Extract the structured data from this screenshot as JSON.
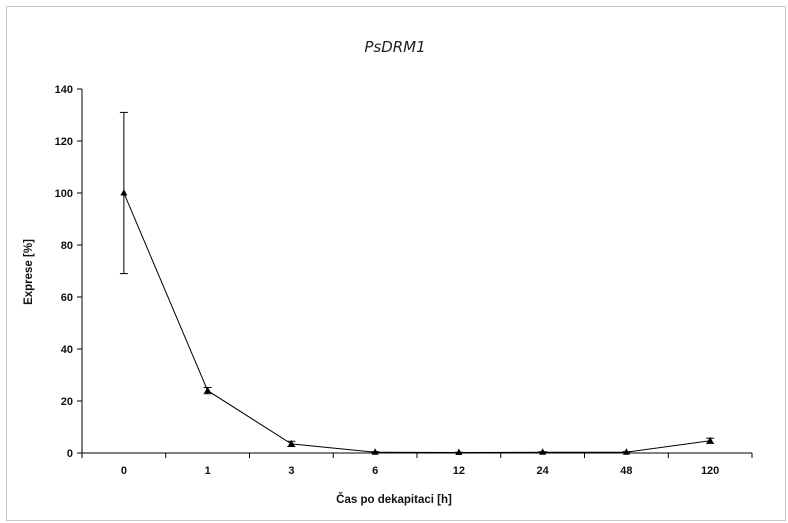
{
  "chart_data": {
    "type": "line",
    "title": "PsDRM1",
    "xlabel": "Čas po dekapitaci [h]",
    "ylabel": "Exprese [%]",
    "categories": [
      "0",
      "1",
      "3",
      "6",
      "12",
      "24",
      "48",
      "120"
    ],
    "series": [
      {
        "values": [
          100,
          24,
          3.5,
          0.3,
          0.2,
          0.3,
          0.3,
          4.7
        ],
        "errors": [
          31,
          1.2,
          1.0,
          0.2,
          0.1,
          0.2,
          0.2,
          1.0
        ],
        "marker": "triangle",
        "color": "#000000"
      }
    ],
    "ylim": [
      0,
      140
    ],
    "yticks": [
      0,
      20,
      40,
      60,
      80,
      100,
      120,
      140
    ],
    "grid": false,
    "legend": "none"
  }
}
